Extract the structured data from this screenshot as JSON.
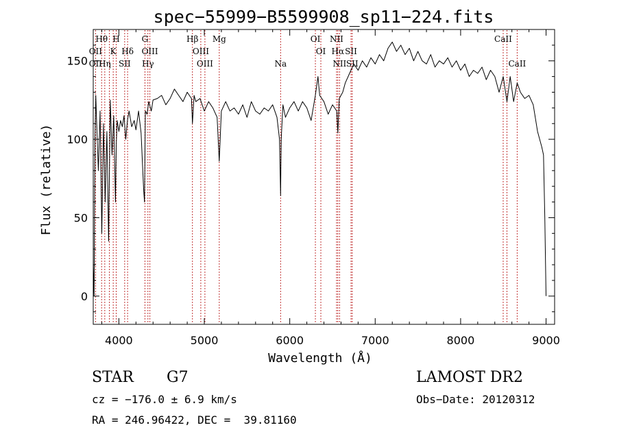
{
  "chart_data": {
    "type": "line",
    "title": "spec−55999−B5599908_sp11−224.fits",
    "xlabel": "Wavelength (Å)",
    "ylabel": "Flux (relative)",
    "xlim": [
      3700,
      9100
    ],
    "ylim": [
      -18,
      170
    ],
    "xticks": [
      4000,
      5000,
      6000,
      7000,
      8000,
      9000
    ],
    "yticks": [
      0,
      50,
      100,
      150
    ],
    "grid": false,
    "series": [
      {
        "color": "#000000",
        "x": [
          3700,
          3710,
          3720,
          3730,
          3740,
          3760,
          3780,
          3800,
          3820,
          3840,
          3860,
          3880,
          3900,
          3920,
          3940,
          3960,
          3970,
          3980,
          4000,
          4020,
          4040,
          4060,
          4080,
          4100,
          4120,
          4150,
          4180,
          4200,
          4230,
          4260,
          4290,
          4300,
          4310,
          4330,
          4350,
          4380,
          4400,
          4450,
          4500,
          4550,
          4600,
          4650,
          4700,
          4750,
          4800,
          4850,
          4861,
          4880,
          4900,
          4950,
          5000,
          5050,
          5100,
          5150,
          5175,
          5200,
          5250,
          5300,
          5350,
          5400,
          5450,
          5500,
          5550,
          5600,
          5650,
          5700,
          5750,
          5800,
          5850,
          5880,
          5893,
          5900,
          5920,
          5950,
          6000,
          6050,
          6100,
          6150,
          6200,
          6250,
          6300,
          6330,
          6350,
          6400,
          6450,
          6500,
          6550,
          6563,
          6580,
          6620,
          6650,
          6700,
          6750,
          6800,
          6850,
          6900,
          6950,
          7000,
          7050,
          7100,
          7150,
          7200,
          7250,
          7300,
          7350,
          7400,
          7450,
          7500,
          7550,
          7600,
          7650,
          7700,
          7750,
          7800,
          7850,
          7900,
          7950,
          8000,
          8050,
          8100,
          8150,
          8200,
          8250,
          8300,
          8350,
          8400,
          8450,
          8498,
          8542,
          8580,
          8620,
          8662,
          8700,
          8750,
          8800,
          8850,
          8900,
          8950,
          8970,
          8985,
          9000
        ],
        "y": [
          20,
          0,
          100,
          128,
          110,
          80,
          118,
          40,
          110,
          60,
          105,
          35,
          125,
          90,
          115,
          60,
          98,
          112,
          105,
          112,
          108,
          115,
          100,
          112,
          118,
          108,
          112,
          106,
          118,
          104,
          68,
          60,
          118,
          116,
          124,
          118,
          125,
          126,
          128,
          122,
          126,
          132,
          128,
          124,
          130,
          126,
          110,
          128,
          124,
          126,
          118,
          124,
          120,
          114,
          86,
          118,
          124,
          118,
          120,
          116,
          122,
          114,
          124,
          118,
          116,
          120,
          118,
          122,
          114,
          100,
          64,
          100,
          122,
          114,
          120,
          124,
          118,
          124,
          120,
          112,
          128,
          140,
          128,
          124,
          116,
          122,
          118,
          104,
          126,
          130,
          136,
          142,
          148,
          144,
          150,
          146,
          152,
          148,
          154,
          150,
          158,
          162,
          156,
          160,
          154,
          158,
          150,
          156,
          150,
          148,
          154,
          146,
          150,
          148,
          152,
          146,
          150,
          144,
          148,
          140,
          144,
          142,
          146,
          138,
          144,
          140,
          130,
          140,
          124,
          140,
          124,
          136,
          130,
          126,
          128,
          122,
          105,
          95,
          90,
          50,
          0
        ]
      }
    ],
    "line_labels": [
      {
        "text": "Hθ",
        "row": 0,
        "x": 3798
      },
      {
        "text": "H",
        "row": 0,
        "x": 3969
      },
      {
        "text": "G",
        "row": 0,
        "x": 4305
      },
      {
        "text": "Hβ",
        "row": 0,
        "x": 4861
      },
      {
        "text": "Mg",
        "row": 0,
        "x": 5175
      },
      {
        "text": "OI",
        "row": 0,
        "x": 6300
      },
      {
        "text": "NII",
        "row": 0,
        "x": 6548
      },
      {
        "text": "CaII",
        "row": 0,
        "x": 8498
      },
      {
        "text": "OII",
        "row": 1,
        "x": 3727
      },
      {
        "text": "K",
        "row": 1,
        "x": 3934
      },
      {
        "text": "Hδ",
        "row": 1,
        "x": 4102
      },
      {
        "text": "OIII",
        "row": 1,
        "x": 4363
      },
      {
        "text": "OIII",
        "row": 1,
        "x": 4959
      },
      {
        "text": "OI",
        "row": 1,
        "x": 6364
      },
      {
        "text": "Hα",
        "row": 1,
        "x": 6563
      },
      {
        "text": "SII",
        "row": 1,
        "x": 6717
      },
      {
        "text": "OII",
        "row": 2,
        "x": 3727
      },
      {
        "text": "Hη",
        "row": 2,
        "x": 3835
      },
      {
        "text": "SII",
        "row": 2,
        "x": 4068
      },
      {
        "text": "Hγ",
        "row": 2,
        "x": 4340
      },
      {
        "text": "OIII",
        "row": 2,
        "x": 5007
      },
      {
        "text": "Na",
        "row": 2,
        "x": 5893
      },
      {
        "text": "NII",
        "row": 2,
        "x": 6583
      },
      {
        "text": "SII",
        "row": 2,
        "x": 6731
      },
      {
        "text": "CaII",
        "row": 2,
        "x": 8662
      }
    ],
    "reference_lines": [
      3727,
      3798,
      3835,
      3889,
      3934,
      3969,
      4068,
      4102,
      4305,
      4340,
      4363,
      4861,
      4959,
      5007,
      5175,
      5893,
      6300,
      6364,
      6548,
      6563,
      6583,
      6717,
      6731,
      8498,
      8542,
      8662
    ],
    "reference_line_color": "#c03030"
  },
  "info": {
    "class": "STAR",
    "subclass": "G7",
    "survey": "LAMOST DR2",
    "cz": "cz = −176.0 ± 6.9 km/s",
    "obsdate": "Obs−Date: 20120312",
    "radec": "RA = 246.96422, DEC =  39.81160"
  }
}
